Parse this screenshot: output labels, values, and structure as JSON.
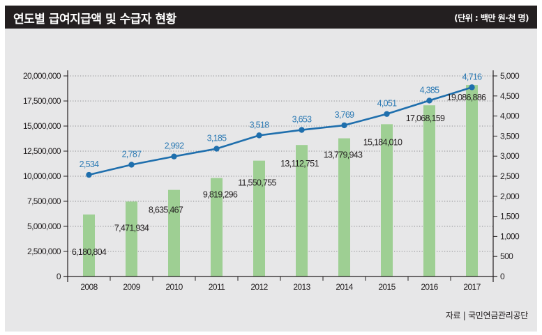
{
  "header": {
    "title": "연도별 급여지급액 및 수급자 현황",
    "unit": "(단위 : 백만 원·천 명)"
  },
  "footer": {
    "source": "자료 | 국민연금관리공단"
  },
  "colors": {
    "bar": "#9ecf93",
    "line": "#1f6fad",
    "line_label": "#2e7bb4",
    "header_bg": "#231f20",
    "panel_bg": "#e7e7e8"
  },
  "chart_data": {
    "type": "bar+line",
    "title": "연도별 급여지급액 및 수급자 현황",
    "unit_note": "(단위 : 백만 원·천 명)",
    "categories": [
      "2008",
      "2009",
      "2010",
      "2011",
      "2012",
      "2013",
      "2014",
      "2015",
      "2016",
      "2017"
    ],
    "series": [
      {
        "name": "급여지급액",
        "type": "bar",
        "axis": "left",
        "values": [
          6180804,
          7471934,
          8635467,
          9819296,
          11550755,
          13112751,
          13779943,
          15184010,
          17068159,
          19086886
        ],
        "labels": [
          "6,180,804",
          "7,471,934",
          "8,635,467",
          "9,819,296",
          "11,550,755",
          "13,112,751",
          "13,779,943",
          "15,184,010",
          "17,068,159",
          "19,086,886"
        ]
      },
      {
        "name": "수급자",
        "type": "line",
        "axis": "right",
        "values": [
          2534,
          2787,
          2992,
          3185,
          3518,
          3653,
          3769,
          4051,
          4385,
          4716
        ],
        "labels": [
          "2,534",
          "2,787",
          "2,992",
          "3,185",
          "3,518",
          "3,653",
          "3,769",
          "4,051",
          "4,385",
          "4,716"
        ]
      }
    ],
    "y_left": {
      "range": [
        0,
        20000000
      ],
      "ticks": [
        0,
        2500000,
        5000000,
        7500000,
        10000000,
        12500000,
        15000000,
        17500000,
        20000000
      ],
      "tick_labels": [
        "0",
        "2,500,000",
        "5,000,000",
        "7,500,000",
        "10,000,000",
        "12,500,000",
        "15,000,000",
        "17,500,000",
        "20,000,000"
      ]
    },
    "y_right": {
      "range": [
        0,
        5000
      ],
      "ticks": [
        0,
        500,
        1000,
        1500,
        2000,
        2500,
        3000,
        3500,
        4000,
        4500,
        5000
      ],
      "tick_labels": [
        "0",
        "500",
        "1,000",
        "1,500",
        "2,000",
        "2,500",
        "3,000",
        "3,500",
        "4,000",
        "4,500",
        "5,000"
      ]
    },
    "grid": "dotted horizontal at left-axis ticks",
    "legend": "none",
    "source": "자료 | 국민연금관리공단"
  }
}
